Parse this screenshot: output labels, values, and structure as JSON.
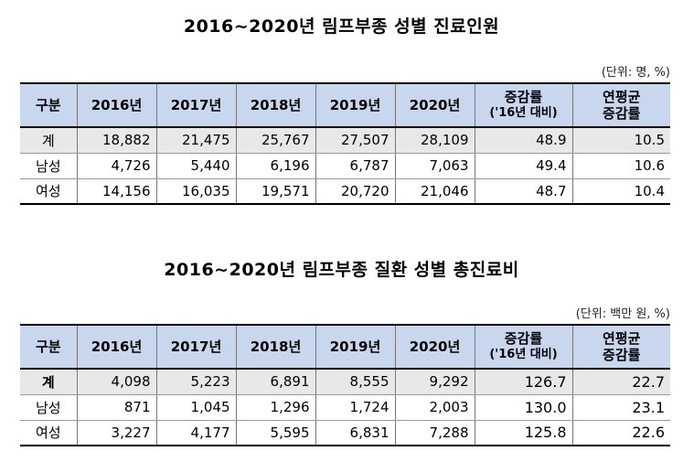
{
  "table1": {
    "title": "2016~2020년 림프부종 성별 진료인원",
    "unit": "(단위: 명, %)",
    "headers": [
      "구분",
      "2016년",
      "2017년",
      "2018년",
      "2019년",
      "2020년",
      "증감률",
      "('16년 대비)",
      "연평균",
      "증감률"
    ],
    "rows": [
      [
        "계",
        "18,882",
        "21,475",
        "25,767",
        "27,507",
        "28,109",
        "48.9",
        "10.5"
      ],
      [
        "남성",
        "4,726",
        "5,440",
        "6,196",
        "6,787",
        "7,063",
        "49.4",
        "10.6"
      ],
      [
        "여성",
        "14,156",
        "16,035",
        "19,571",
        "20,720",
        "21,046",
        "48.7",
        "10.4"
      ]
    ]
  },
  "table2": {
    "title": "2016~2020년 림프부종 질환 성별 총진료비",
    "unit": "(단위: 백만 원, %)",
    "headers": [
      "구분",
      "2016년",
      "2017년",
      "2018년",
      "2019년",
      "2020년",
      "증감률",
      "('16년 대비)",
      "연평균",
      "증감률"
    ],
    "rows": [
      [
        "계",
        "4,098",
        "5,223",
        "6,891",
        "8,555",
        "9,292",
        "126.7",
        "22.7"
      ],
      [
        "남성",
        "871",
        "1,045",
        "1,296",
        "1,724",
        "2,003",
        "130.0",
        "23.1"
      ],
      [
        "여성",
        "3,227",
        "4,177",
        "5,595",
        "6,831",
        "7,288",
        "125.8",
        "22.6"
      ]
    ]
  }
}
